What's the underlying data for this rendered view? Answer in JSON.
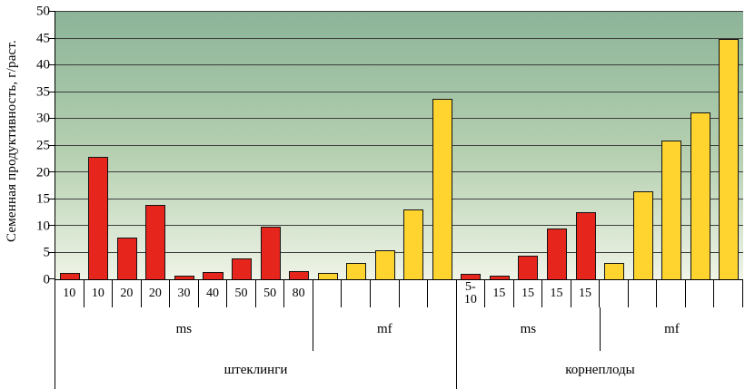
{
  "chart_data": {
    "type": "bar",
    "title": "",
    "ylabel": "Семенная продуктивность, г/раст.",
    "xlabel": "",
    "ylim": [
      0,
      50
    ],
    "ytick_step": 5,
    "grid": "horizontal",
    "legend": "none",
    "colors": {
      "red": "#e6251d",
      "yellow": "#ffd42e"
    },
    "groups": [
      {
        "label": "штеклинги",
        "subgroups": [
          {
            "label": "ms",
            "color": "red",
            "bars": [
              {
                "x": "10",
                "v": 1.2
              },
              {
                "x": "10",
                "v": 22.8
              },
              {
                "x": "20",
                "v": 7.8
              },
              {
                "x": "20",
                "v": 13.9
              },
              {
                "x": "30",
                "v": 0.6
              },
              {
                "x": "40",
                "v": 1.4
              },
              {
                "x": "50",
                "v": 3.9
              },
              {
                "x": "50",
                "v": 9.8
              },
              {
                "x": "80",
                "v": 1.5
              }
            ]
          },
          {
            "label": "mf",
            "color": "yellow",
            "bars": [
              {
                "x": "",
                "v": 1.2
              },
              {
                "x": "",
                "v": 3.0
              },
              {
                "x": "",
                "v": 5.4
              },
              {
                "x": "",
                "v": 13.0
              },
              {
                "x": "",
                "v": 33.8
              }
            ]
          }
        ]
      },
      {
        "label": "корнеплоды",
        "subgroups": [
          {
            "label": "ms",
            "color": "red",
            "bars": [
              {
                "x": "5-\n10",
                "v": 1.0
              },
              {
                "x": "15",
                "v": 0.6
              },
              {
                "x": "15",
                "v": 4.4
              },
              {
                "x": "15",
                "v": 9.5
              },
              {
                "x": "15",
                "v": 12.6
              }
            ]
          },
          {
            "label": "mf",
            "color": "yellow",
            "bars": [
              {
                "x": "",
                "v": 3.0
              },
              {
                "x": "",
                "v": 16.4
              },
              {
                "x": "",
                "v": 26.0
              },
              {
                "x": "",
                "v": 31.2
              },
              {
                "x": "",
                "v": 45.0
              }
            ]
          }
        ]
      }
    ]
  }
}
